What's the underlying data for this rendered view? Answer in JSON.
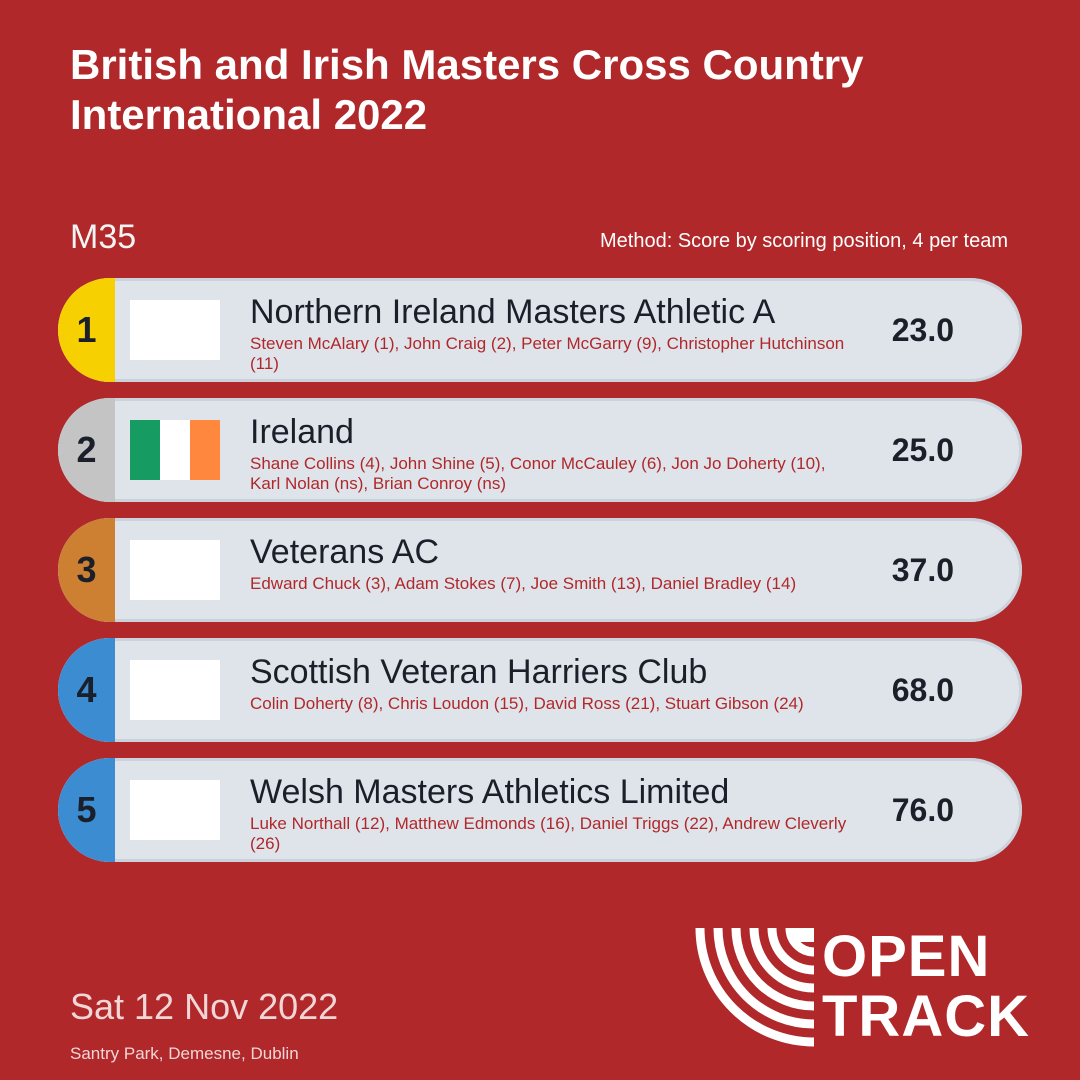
{
  "header": {
    "title": "British and Irish Masters Cross Country International 2022",
    "category": "M35",
    "method": "Method: Score by scoring position, 4 per team"
  },
  "results": [
    {
      "rank": "1",
      "rank_color": "#f6d000",
      "flag": null,
      "team": "Northern Ireland Masters Athletic A",
      "members": "Steven McAlary (1), John Craig (2), Peter McGarry (9), Christopher Hutchinson (11)",
      "score": "23.0"
    },
    {
      "rank": "2",
      "rank_color": "#c4c4c4",
      "flag": [
        "#169b62",
        "#ffffff",
        "#ff883e"
      ],
      "team": "Ireland",
      "members": "Shane Collins (4), John Shine (5), Conor McCauley (6), Jon Jo Doherty (10), Karl Nolan (ns), Brian Conroy (ns)",
      "score": "25.0"
    },
    {
      "rank": "3",
      "rank_color": "#cd7f32",
      "flag": null,
      "team": "Veterans AC",
      "members": "Edward Chuck (3), Adam Stokes (7), Joe Smith (13), Daniel Bradley (14)",
      "score": "37.0"
    },
    {
      "rank": "4",
      "rank_color": "#3b8cd1",
      "flag": null,
      "team": "Scottish Veteran Harriers Club",
      "members": "Colin Doherty (8), Chris Loudon (15), David Ross (21), Stuart Gibson (24)",
      "score": "68.0"
    },
    {
      "rank": "5",
      "rank_color": "#3b8cd1",
      "flag": null,
      "team": "Welsh Masters Athletics Limited",
      "members": "Luke Northall (12), Matthew Edmonds (16), Daniel Triggs (22), Andrew Cleverly (26)",
      "score": "76.0"
    }
  ],
  "footer": {
    "date": "Sat 12 Nov 2022",
    "venue": "Santry Park, Demesne, Dublin"
  },
  "logo": {
    "line1": "OPEN",
    "line2": "TRACK",
    "icon": "opentrack-logo-icon"
  },
  "colors": {
    "background": "#b0282a",
    "row": "#dfe4eb",
    "member_text": "#b0282a"
  }
}
